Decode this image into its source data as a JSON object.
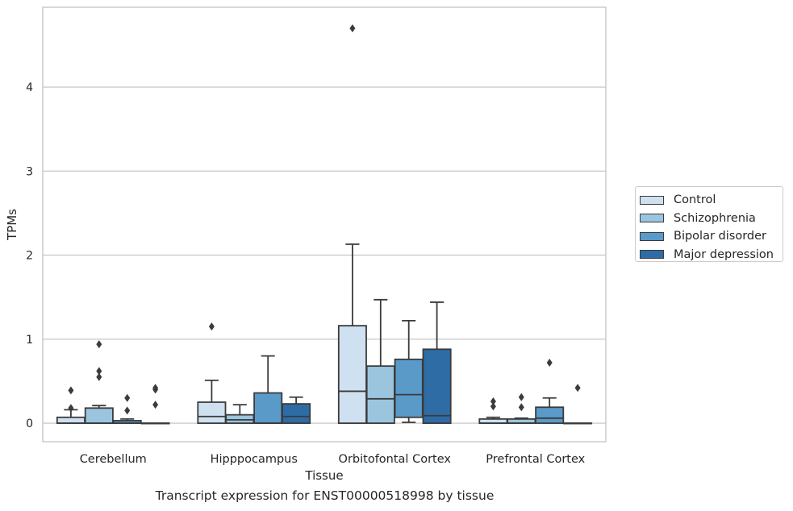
{
  "chart_data": {
    "type": "boxplot",
    "caption": "Transcript expression for ENST00000518998 by tissue",
    "xlabel": "Tissue",
    "ylabel": "TPMs",
    "ylim": [
      -0.22,
      4.95
    ],
    "yticks": [
      0,
      1,
      2,
      3,
      4
    ],
    "grid": "horizontal",
    "legend_position": "right",
    "categories": [
      "Cerebellum",
      "Hipppocampus",
      "Orbitofontal Cortex",
      "Prefrontal Cortex"
    ],
    "series": [
      {
        "name": "Control",
        "color": "#cfe0f1",
        "boxes": [
          {
            "min": 0,
            "q1": 0,
            "median": 0,
            "q3": 0.07,
            "max": 0.16,
            "outliers": [
              0.18,
              0.39
            ]
          },
          {
            "min": 0,
            "q1": 0,
            "median": 0.08,
            "q3": 0.25,
            "max": 0.51,
            "outliers": [
              1.15
            ]
          },
          {
            "min": 0,
            "q1": 0,
            "median": 0.38,
            "q3": 1.16,
            "max": 2.13,
            "outliers": [
              4.7
            ]
          },
          {
            "min": 0,
            "q1": 0,
            "median": 0,
            "q3": 0.05,
            "max": 0.07,
            "outliers": [
              0.2,
              0.26
            ]
          }
        ]
      },
      {
        "name": "Schizophrenia",
        "color": "#9bc5df",
        "boxes": [
          {
            "min": 0,
            "q1": 0,
            "median": 0,
            "q3": 0.18,
            "max": 0.21,
            "outliers": [
              0.55,
              0.62,
              0.94
            ]
          },
          {
            "min": 0,
            "q1": 0,
            "median": 0.04,
            "q3": 0.1,
            "max": 0.22,
            "outliers": []
          },
          {
            "min": 0,
            "q1": 0,
            "median": 0.29,
            "q3": 0.68,
            "max": 1.47,
            "outliers": []
          },
          {
            "min": 0,
            "q1": 0,
            "median": 0,
            "q3": 0.05,
            "max": 0.06,
            "outliers": [
              0.19,
              0.31
            ]
          }
        ]
      },
      {
        "name": "Bipolar disorder",
        "color": "#5a9ac9",
        "boxes": [
          {
            "min": 0,
            "q1": 0,
            "median": 0,
            "q3": 0.03,
            "max": 0.05,
            "outliers": [
              0.15,
              0.3
            ]
          },
          {
            "min": 0,
            "q1": 0,
            "median": 0,
            "q3": 0.36,
            "max": 0.8,
            "outliers": []
          },
          {
            "min": 0.01,
            "q1": 0.07,
            "median": 0.34,
            "q3": 0.76,
            "max": 1.22,
            "outliers": []
          },
          {
            "min": 0,
            "q1": 0,
            "median": 0.06,
            "q3": 0.19,
            "max": 0.3,
            "outliers": [
              0.72
            ]
          }
        ]
      },
      {
        "name": "Major depression",
        "color": "#2e6ca5",
        "boxes": [
          {
            "min": 0,
            "q1": 0,
            "median": 0,
            "q3": 0,
            "max": 0,
            "outliers": [
              0.22,
              0.4,
              0.42
            ]
          },
          {
            "min": 0,
            "q1": 0,
            "median": 0.08,
            "q3": 0.23,
            "max": 0.31,
            "outliers": []
          },
          {
            "min": 0,
            "q1": 0,
            "median": 0.09,
            "q3": 0.88,
            "max": 1.44,
            "outliers": []
          },
          {
            "min": 0,
            "q1": 0,
            "median": 0,
            "q3": 0,
            "max": 0,
            "outliers": [
              0.42
            ]
          }
        ]
      }
    ]
  }
}
